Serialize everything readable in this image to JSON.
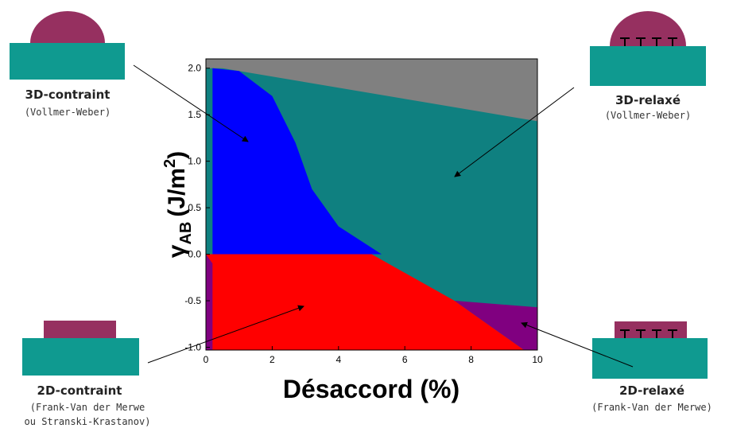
{
  "chart_data": {
    "type": "region",
    "xlabel": "Désaccord (%)",
    "ylabel": {
      "symbol": "γ",
      "sub": "AB",
      "unit": "(J/m",
      "sup": "2",
      "close": ")"
    },
    "xlim": [
      0,
      10
    ],
    "ylim": [
      -1.03,
      2.1
    ],
    "xticks": [
      0,
      2,
      4,
      6,
      8,
      10
    ],
    "yticks": [
      {
        "value": 2,
        "label": "2.0"
      },
      1.5,
      {
        "value": 1,
        "label": "1.0"
      },
      0.5,
      {
        "value": 0,
        "label": "0.0"
      },
      -0.5,
      {
        "value": -1,
        "label": "-1.0"
      }
    ],
    "background": "#0f8080",
    "regions": [
      {
        "color": "#808080",
        "x": [
          0,
          10,
          10,
          0.5,
          0
        ],
        "y": [
          2.1,
          2.1,
          1.43,
          2.0,
          2.0
        ]
      },
      {
        "color": "#0000ff",
        "x": [
          0.2,
          1,
          2,
          2.7,
          3.2,
          4,
          5.3,
          0.2
        ],
        "y": [
          2.0,
          1.97,
          1.7,
          1.2,
          0.7,
          0.3,
          0,
          0
        ]
      },
      {
        "color": "#ff0000",
        "x": [
          0,
          5,
          7.5,
          9.6,
          0
        ],
        "y": [
          0,
          0,
          -0.5,
          -1.03,
          -1.03
        ]
      },
      {
        "color": "#800080",
        "x": [
          7.5,
          10,
          10,
          9.6
        ],
        "y": [
          -0.5,
          -0.57,
          -1.03,
          -1.03
        ]
      },
      {
        "color": "#800080",
        "x": [
          0,
          0.2,
          0.2,
          0
        ],
        "y": [
          0,
          -0.1,
          -1.03,
          -1.03
        ]
      }
    ],
    "annotations": {
      "tl_title": "3D-contraint",
      "tl_sub": "(Vollmer-Weber)",
      "tr_title": "3D-relaxé",
      "tr_sub": "(Vollmer-Weber)",
      "bl_title": "2D-contraint",
      "bl_sub1": "(Frank-Van der Merwe",
      "bl_sub2": "ou Stranski-Krastanov)",
      "br_title": "2D-relaxé",
      "br_sub": "(Frank-Van der Merwe)"
    }
  }
}
